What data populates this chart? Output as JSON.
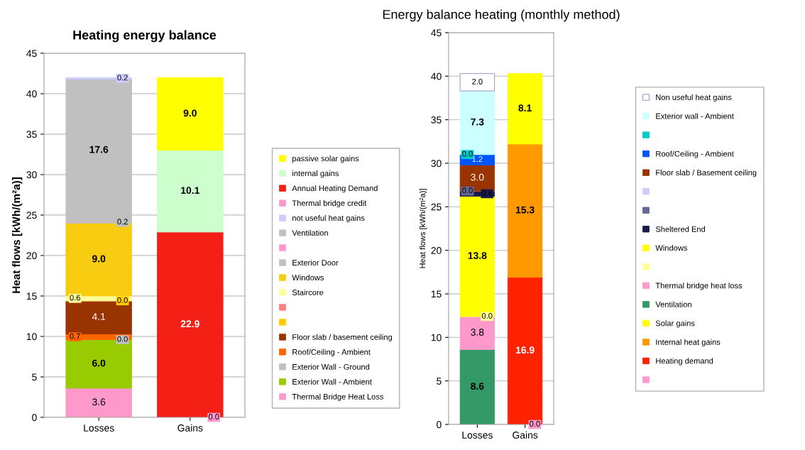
{
  "chart_data": [
    {
      "type": "bar",
      "stacked": true,
      "title": "Heating energy balance",
      "ylabel": "Heat flows [kWh/(m²a)]",
      "categories": [
        "Losses",
        "Gains"
      ],
      "ylim": [
        0,
        45
      ],
      "yticks": [
        0,
        5,
        10,
        15,
        20,
        25,
        30,
        35,
        40,
        45
      ],
      "grid": "y",
      "legend": "right",
      "series": [
        {
          "name": "Thermal Bridge Heat Loss",
          "color": "#ff99cc",
          "values": [
            3.6,
            null
          ],
          "value_labels": [
            "3.6",
            null
          ]
        },
        {
          "name": "Exterior Wall - Ambient",
          "color": "#99cc00",
          "values": [
            6.0,
            null
          ],
          "value_labels": [
            "6.0",
            null
          ]
        },
        {
          "name": "Exterior Wall - Ground",
          "color": "#c0c0c0",
          "values": [
            0.0,
            null
          ],
          "value_labels": [
            "0.0",
            null
          ]
        },
        {
          "name": "Roof/Ceiling - Ambient",
          "color": "#ff6600",
          "values": [
            0.7,
            null
          ],
          "value_labels": [
            "0.7",
            null
          ]
        },
        {
          "name": "Floor slab / basement ceiling",
          "color": "#993300",
          "values": [
            4.1,
            null
          ],
          "value_labels": [
            "4.1",
            null
          ]
        },
        {
          "color": "#ffcc00",
          "values": [
            0.0,
            null
          ],
          "value_labels": [
            "0.0",
            null
          ]
        },
        {
          "color": "#ff8080",
          "values": [
            0.0,
            null
          ],
          "value_labels": [
            null,
            null
          ]
        },
        {
          "name": "Staircore",
          "color": "#ffff99",
          "values": [
            0.6,
            null
          ],
          "value_labels": [
            "0.6",
            null
          ]
        },
        {
          "name": "Windows",
          "color": "#f8cc10",
          "values": [
            9.0,
            null
          ],
          "value_labels": [
            "9.0",
            null
          ]
        },
        {
          "name": "Exterior Door",
          "color": "#c0c0c0",
          "values": [
            0.2,
            null
          ],
          "value_labels": [
            "0.2",
            null
          ]
        },
        {
          "color": "#ff99cc",
          "values": [
            0.0,
            null
          ],
          "value_labels": [
            null,
            null
          ]
        },
        {
          "name": "Ventilation",
          "color": "#c0c0c0",
          "values": [
            17.6,
            null
          ],
          "value_labels": [
            "17.6",
            null
          ]
        },
        {
          "name": "not useful heat gains",
          "color": "#ccccff",
          "values": [
            0.2,
            null
          ],
          "value_labels": [
            "0.2",
            null
          ]
        },
        {
          "name": "Thermal bridge credit",
          "color": "#ff99cc",
          "values": [
            null,
            0.0
          ],
          "value_labels": [
            null,
            "0.0"
          ]
        },
        {
          "name": "Annual Heating Demand",
          "color": "#f52015",
          "values": [
            null,
            22.9
          ],
          "value_labels": [
            null,
            "22.9"
          ]
        },
        {
          "name": "internal gains",
          "color": "#ccffcc",
          "values": [
            null,
            10.1
          ],
          "value_labels": [
            null,
            "10.1"
          ]
        },
        {
          "name": "passive solar gains",
          "color": "#ffff00",
          "values": [
            null,
            9.0
          ],
          "value_labels": [
            null,
            "9.0"
          ]
        }
      ]
    },
    {
      "type": "bar",
      "stacked": true,
      "title": "Energy balance heating (monthly method)",
      "ylabel": "Heat flows [kWh/(m²a)]",
      "categories": [
        "Losses",
        "Gains"
      ],
      "ylim": [
        0,
        45
      ],
      "yticks": [
        0,
        5,
        10,
        15,
        20,
        25,
        30,
        35,
        40,
        45
      ],
      "grid": "y",
      "legend": "right",
      "series": [
        {
          "color": "#ff99cc",
          "values": [
            null,
            0.0
          ],
          "value_labels": [
            null,
            "0.0"
          ]
        },
        {
          "name": "Heating demand",
          "color": "#ff2200",
          "values": [
            null,
            16.9
          ],
          "value_labels": [
            null,
            "16.9"
          ]
        },
        {
          "name": "Internal heat gains",
          "color": "#ff9900",
          "values": [
            null,
            15.3
          ],
          "value_labels": [
            null,
            "15.3"
          ]
        },
        {
          "name": "Solar gains",
          "color": "#ffff00",
          "values": [
            null,
            8.1
          ],
          "value_labels": [
            null,
            "8.1"
          ]
        },
        {
          "name": "Ventilation",
          "color": "#339966",
          "values": [
            8.6,
            null
          ],
          "value_labels": [
            "8.6",
            null
          ]
        },
        {
          "name": "Thermal bridge heat loss",
          "color": "#ff99cc",
          "values": [
            3.8,
            null
          ],
          "value_labels": [
            "3.8",
            null
          ]
        },
        {
          "color": "#ffff99",
          "values": [
            0.0,
            null
          ],
          "value_labels": [
            "0.0",
            null
          ]
        },
        {
          "name": "Windows",
          "color": "#ffff00",
          "values": [
            13.8,
            null
          ],
          "value_labels": [
            "13.8",
            null
          ]
        },
        {
          "name": "Sheltered End",
          "color": "#1a1a4d",
          "values": [
            0.6,
            null
          ],
          "value_labels": [
            "0.6",
            null
          ]
        },
        {
          "color": "#666699",
          "values": [
            0.0,
            null
          ],
          "value_labels": [
            "0.0",
            null
          ]
        },
        {
          "color": "#ccccff",
          "values": [
            0.0,
            null
          ],
          "value_labels": [
            null,
            null
          ]
        },
        {
          "name": "Floor slab / Basement ceiling",
          "color": "#993300",
          "values": [
            3.0,
            null
          ],
          "value_labels": [
            "3.0",
            null
          ]
        },
        {
          "name": "Roof/Ceiling - Ambient",
          "color": "#0055ff",
          "values": [
            1.2,
            null
          ],
          "value_labels": [
            "1.2",
            null
          ]
        },
        {
          "color": "#00cccc",
          "values": [
            0.0,
            null
          ],
          "value_labels": [
            "0.0",
            null
          ]
        },
        {
          "name": "Exterior wall - Ambient",
          "color": "#ccffff",
          "values": [
            7.3,
            null
          ],
          "value_labels": [
            "7.3",
            null
          ]
        },
        {
          "name": "Non useful heat gains",
          "color": "#ffffff",
          "values": [
            2.0,
            null
          ],
          "value_labels": [
            "2.0",
            null
          ]
        }
      ]
    }
  ]
}
